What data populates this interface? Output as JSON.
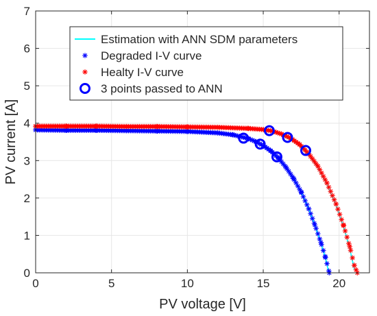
{
  "chart_data": {
    "type": "scatter",
    "title": "",
    "xlabel": "PV voltage [V]",
    "ylabel": "PV current [A]",
    "xlim": [
      0,
      22
    ],
    "ylim": [
      0,
      7
    ],
    "xticks": [
      0,
      5,
      10,
      15,
      20
    ],
    "yticks": [
      0,
      1,
      2,
      3,
      4,
      5,
      6,
      7
    ],
    "grid": true,
    "legend_position": "top-right",
    "legend": [
      {
        "label": "Estimation with ANN SDM parameters",
        "marker": "line",
        "color": "#00ffff"
      },
      {
        "label": "Degraded I-V curve",
        "marker": "star",
        "color": "#0000ff"
      },
      {
        "label": "Healty I-V curve",
        "marker": "star",
        "color": "#ff0000"
      },
      {
        "label": "3 points passed to ANN",
        "marker": "circle",
        "color": "#0000ff"
      }
    ],
    "series": [
      {
        "name": "Estimation with ANN SDM parameters",
        "kind": "line",
        "color": "#00ffff",
        "curves": [
          {
            "x": [
              0,
              2,
              4,
              6,
              8,
              10,
              12,
              13,
              14,
              14.8,
              15.5,
              16,
              16.5,
              17,
              17.5,
              18,
              18.4,
              18.8,
              19.1,
              19.3
            ],
            "y": [
              3.84,
              3.84,
              3.83,
              3.83,
              3.82,
              3.81,
              3.76,
              3.71,
              3.6,
              3.44,
              3.24,
              3.04,
              2.8,
              2.5,
              2.14,
              1.7,
              1.27,
              0.8,
              0.4,
              0.05
            ]
          },
          {
            "x": [
              0,
              2,
              4,
              6,
              8,
              10,
              12,
              14,
              15,
              15.6,
              16.2,
              16.8,
              17.4,
              18,
              18.6,
              19.2,
              19.8,
              20.3,
              20.7,
              21.0
            ],
            "y": [
              3.9,
              3.9,
              3.9,
              3.9,
              3.89,
              3.89,
              3.88,
              3.85,
              3.82,
              3.77,
              3.68,
              3.56,
              3.4,
              3.15,
              2.81,
              2.36,
              1.8,
              1.22,
              0.65,
              0.1
            ]
          }
        ]
      },
      {
        "name": "Degraded I-V curve",
        "kind": "star",
        "color": "#0000ff",
        "x": [
          0,
          2,
          4,
          6,
          8,
          10,
          12,
          13,
          14,
          14.5,
          15,
          15.5,
          16,
          16.5,
          17,
          17.5,
          18,
          18.4,
          18.8,
          19.1,
          19.35
        ],
        "y": [
          3.82,
          3.81,
          3.81,
          3.8,
          3.79,
          3.78,
          3.74,
          3.69,
          3.59,
          3.51,
          3.4,
          3.26,
          3.07,
          2.82,
          2.52,
          2.16,
          1.71,
          1.28,
          0.81,
          0.41,
          0.0
        ]
      },
      {
        "name": "Healty I-V curve",
        "kind": "star",
        "color": "#ff0000",
        "x": [
          0,
          2,
          4,
          6,
          8,
          10,
          12,
          14,
          15,
          15.6,
          16.2,
          16.8,
          17.4,
          18,
          18.6,
          19.2,
          19.8,
          20.3,
          20.7,
          21.0,
          21.2
        ],
        "y": [
          3.92,
          3.92,
          3.92,
          3.91,
          3.91,
          3.9,
          3.89,
          3.86,
          3.83,
          3.79,
          3.71,
          3.6,
          3.43,
          3.18,
          2.85,
          2.4,
          1.84,
          1.26,
          0.7,
          0.2,
          0.0
        ]
      },
      {
        "name": "3 points passed to ANN",
        "kind": "circle",
        "color": "#0000ff",
        "x": [
          13.7,
          14.8,
          15.9,
          15.4,
          16.6,
          17.8
        ],
        "y": [
          3.6,
          3.44,
          3.1,
          3.8,
          3.62,
          3.27
        ]
      }
    ]
  }
}
